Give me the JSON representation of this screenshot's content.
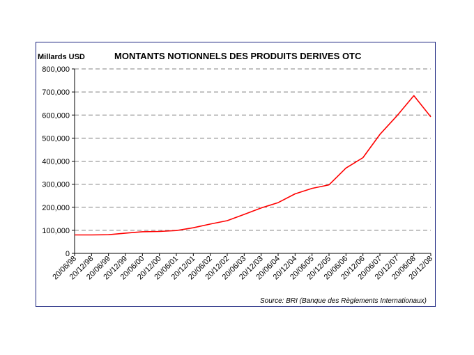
{
  "chart_data": {
    "type": "line",
    "title": "MONTANTS NOTIONNELS DES PRODUITS DERIVES OTC",
    "ylabel": "Millards USD",
    "xlabel": "",
    "source": "Source: BRI (Banque des Règlements Internationaux)",
    "categories": [
      "20/06/98",
      "20/12/98",
      "20/06/99",
      "20/12/99",
      "20/06/00",
      "20/12/00",
      "20/06/01",
      "20/12/01",
      "20/06/02",
      "20/12/02",
      "20/06/03",
      "20/12/03",
      "20/06/04",
      "20/12/04",
      "20/06/05",
      "20/12/05",
      "20/06/06",
      "20/12/06",
      "20/06/07",
      "20/12/07",
      "20/06/08",
      "20/12/08"
    ],
    "series": [
      {
        "values": [
          80000,
          80000,
          81000,
          88000,
          94000,
          95000,
          99000,
          111000,
          127000,
          142000,
          169000,
          197000,
          220000,
          258000,
          282000,
          297000,
          370000,
          415000,
          516000,
          596000,
          684000,
          592000
        ]
      }
    ],
    "y_ticks": [
      "0",
      "100,000",
      "200,000",
      "300,000",
      "400,000",
      "500,000",
      "600,000",
      "700,000",
      "800,000"
    ],
    "ylim": [
      0,
      800000
    ],
    "grid": true,
    "colors": {
      "line": "#ff0000",
      "grid": "#808080",
      "frame": "#1a237e"
    }
  }
}
